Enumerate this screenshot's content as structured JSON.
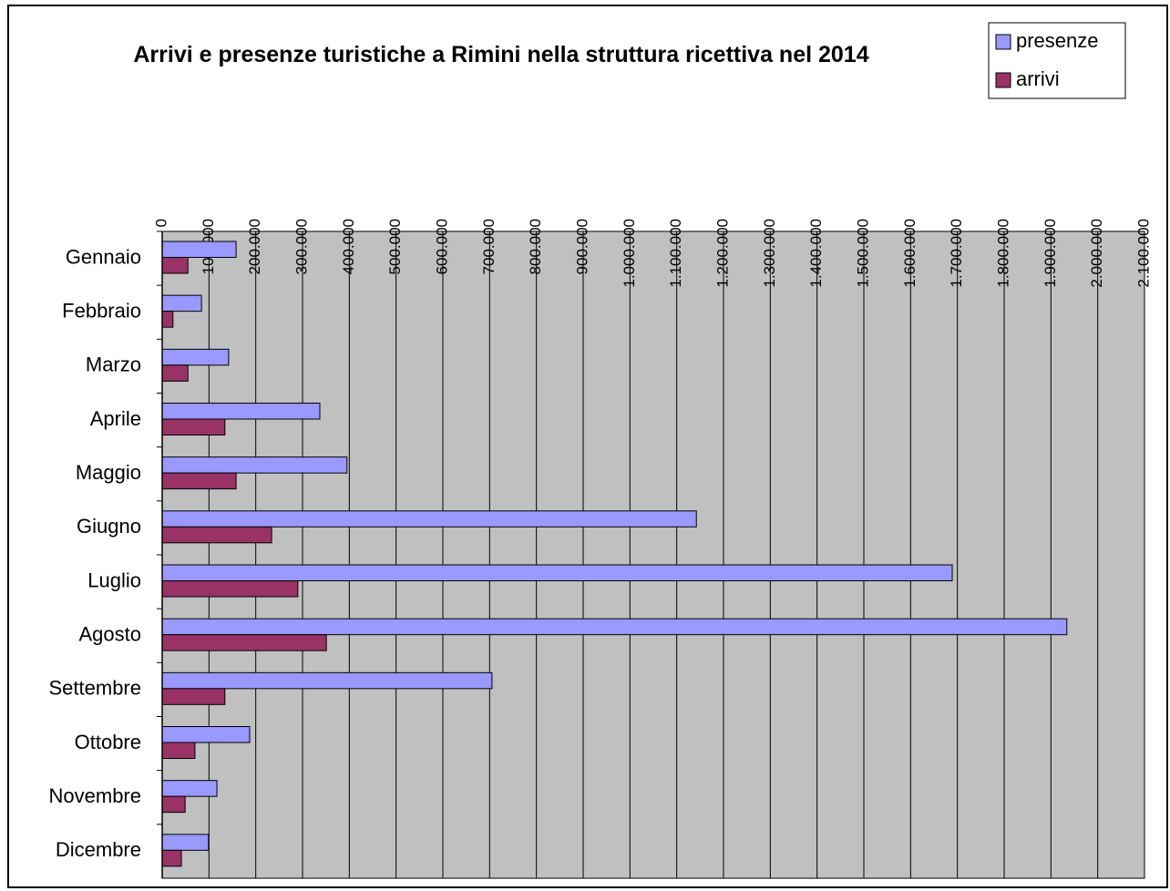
{
  "chart_data": {
    "type": "bar",
    "orientation": "horizontal",
    "title": "Arrivi e presenze turistiche a Rimini nella struttura ricettiva nel 2014",
    "categories": [
      "Gennaio",
      "Febbraio",
      "Marzo",
      "Aprile",
      "Maggio",
      "Giugno",
      "Luglio",
      "Agosto",
      "Settembre",
      "Ottobre",
      "Novembre",
      "Dicembre"
    ],
    "series": [
      {
        "name": "presenze",
        "color": "#9999ff",
        "values": [
          158000,
          84000,
          142000,
          337000,
          395000,
          1142000,
          1689000,
          1934000,
          705000,
          187000,
          117000,
          99000
        ]
      },
      {
        "name": "arrivi",
        "color": "#993366",
        "values": [
          55000,
          23000,
          55000,
          134000,
          158000,
          234000,
          290000,
          351000,
          134000,
          70000,
          49000,
          41000
        ]
      }
    ],
    "xlim": [
      0,
      2100000
    ],
    "xticks": [
      0,
      {
        "value": 100000,
        "label": "100.000"
      },
      {
        "value": 200000,
        "label": "200.000"
      },
      {
        "value": 300000,
        "label": "300.000"
      },
      {
        "value": 400000,
        "label": "400.000"
      },
      {
        "value": 500000,
        "label": "500.000"
      },
      {
        "value": 600000,
        "label": "600.000"
      },
      {
        "value": 700000,
        "label": "700.000"
      },
      {
        "value": 800000,
        "label": "800.000"
      },
      {
        "value": 900000,
        "label": "900.000"
      },
      {
        "value": 1000000,
        "label": "1.000.000"
      },
      {
        "value": 1100000,
        "label": "1.100.000"
      },
      {
        "value": 1200000,
        "label": "1.200.000"
      },
      {
        "value": 1300000,
        "label": "1.300.000"
      },
      {
        "value": 1400000,
        "label": "1.400.000"
      },
      {
        "value": 1500000,
        "label": "1.500.000"
      },
      {
        "value": 1600000,
        "label": "1.600.000"
      },
      {
        "value": 1700000,
        "label": "1.700.000"
      },
      {
        "value": 1800000,
        "label": "1.800.000"
      },
      {
        "value": 1900000,
        "label": "1.900.000"
      },
      {
        "value": 2000000,
        "label": "2.000.000"
      },
      {
        "value": 2100000,
        "label": "2.100.000"
      }
    ],
    "grid": true,
    "legend": "top-right",
    "plot_background": "#c0c0c0"
  }
}
